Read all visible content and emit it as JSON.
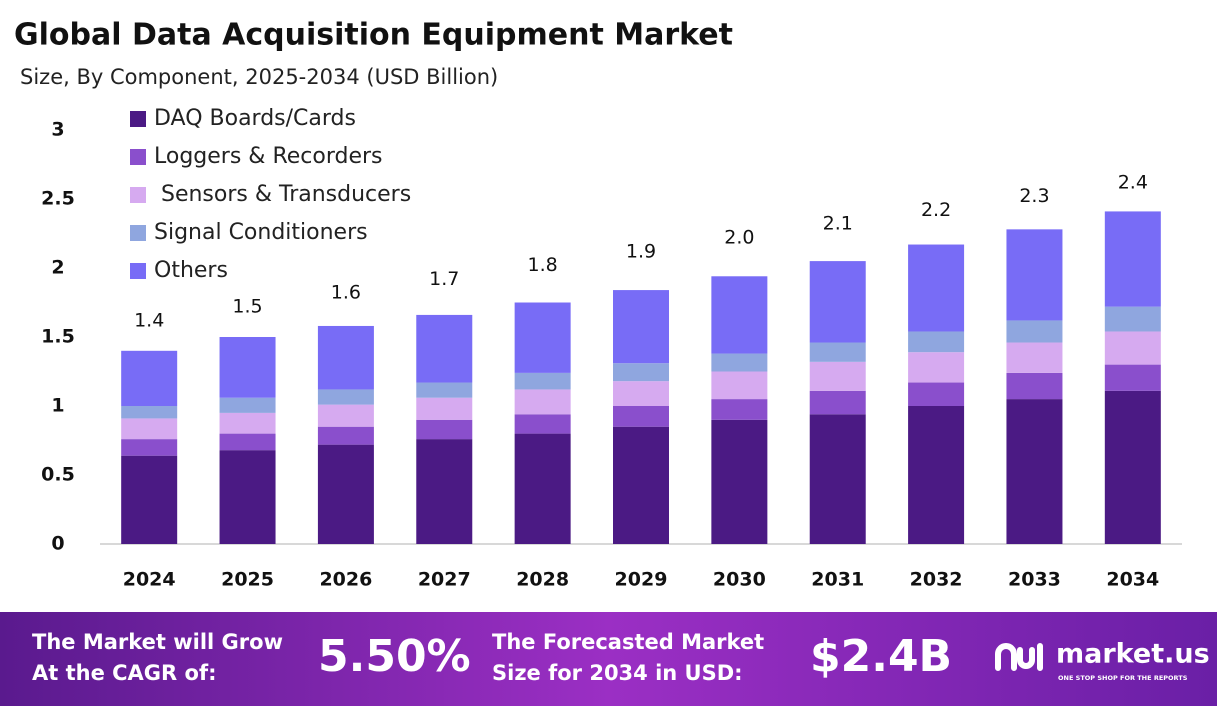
{
  "chart_data": {
    "type": "stacked-bar",
    "title": "Global Data Acquisition Equipment Market",
    "subtitle": "Size, By Component, 2025-2034 (USD Billion)",
    "categories": [
      "2024",
      "2025",
      "2026",
      "2027",
      "2028",
      "2029",
      "2030",
      "2031",
      "2032",
      "2033",
      "2034"
    ],
    "series": [
      {
        "name": "DAQ Boards/Cards",
        "color": "#4b1a84",
        "values": [
          0.64,
          0.68,
          0.72,
          0.76,
          0.8,
          0.85,
          0.9,
          0.94,
          1.0,
          1.05,
          1.11
        ]
      },
      {
        "name": "Loggers & Recorders",
        "color": "#8a4fcc",
        "values": [
          0.12,
          0.12,
          0.13,
          0.14,
          0.14,
          0.15,
          0.15,
          0.17,
          0.17,
          0.19,
          0.19
        ]
      },
      {
        "name": " Sensors & Transducers",
        "color": "#d6aaf0",
        "values": [
          0.15,
          0.15,
          0.16,
          0.16,
          0.18,
          0.18,
          0.2,
          0.21,
          0.22,
          0.22,
          0.24
        ]
      },
      {
        "name": "Signal Conditioners",
        "color": "#8fa6df",
        "values": [
          0.09,
          0.11,
          0.11,
          0.11,
          0.12,
          0.13,
          0.13,
          0.14,
          0.15,
          0.16,
          0.18
        ]
      },
      {
        "name": "Others",
        "color": "#786cf6",
        "values": [
          0.4,
          0.44,
          0.46,
          0.49,
          0.51,
          0.53,
          0.56,
          0.59,
          0.63,
          0.66,
          0.69
        ]
      }
    ],
    "totals": {
      "values": [
        1.4,
        1.5,
        1.6,
        1.7,
        1.8,
        1.9,
        2.0,
        2.1,
        2.2,
        2.3,
        2.4
      ],
      "value_labels": [
        "1.4",
        "1.5",
        "1.6",
        "1.7",
        "1.8",
        "1.9",
        "2.0",
        "2.1",
        "2.2",
        "2.3",
        "2.4"
      ]
    },
    "ylim": [
      0,
      3
    ],
    "yticks": [
      0,
      0.5,
      1,
      1.5,
      2,
      2.5,
      3
    ],
    "grid": false,
    "legend": "top-left"
  },
  "footer": {
    "cagr_text_1": "The Market will Grow",
    "cagr_text_2": "At the CAGR of:",
    "cagr_value": "5.50%",
    "forecast_text_1": "The Forecasted Market",
    "forecast_text_2": "Size for 2034 in USD:",
    "forecast_value": "$2.4B",
    "brand": "market.us",
    "tagline": "ONE STOP SHOP FOR THE REPORTS"
  }
}
